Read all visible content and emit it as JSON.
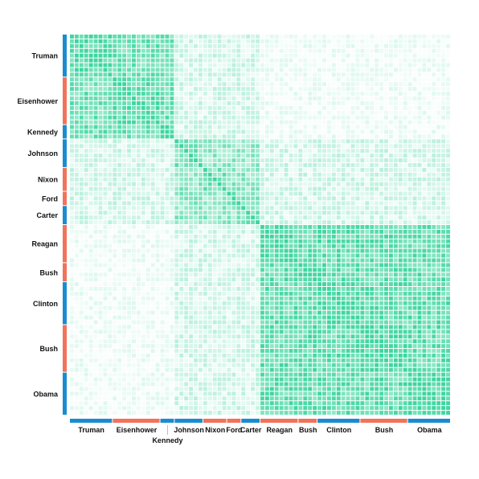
{
  "chart_data": {
    "type": "heatmap",
    "title": "",
    "presidents": [
      {
        "name": "Truman",
        "party": "D",
        "count": 9
      },
      {
        "name": "Eisenhower",
        "party": "R",
        "count": 10
      },
      {
        "name": "Kennedy",
        "party": "D",
        "count": 3
      },
      {
        "name": "Johnson",
        "party": "D",
        "count": 6
      },
      {
        "name": "Nixon",
        "party": "R",
        "count": 5
      },
      {
        "name": "Ford",
        "party": "R",
        "count": 3
      },
      {
        "name": "Carter",
        "party": "D",
        "count": 4
      },
      {
        "name": "Reagan",
        "party": "R",
        "count": 8
      },
      {
        "name": "Bush",
        "party": "R",
        "count": 4
      },
      {
        "name": "Clinton",
        "party": "D",
        "count": 9
      },
      {
        "name": "Bush",
        "party": "R",
        "count": 10
      },
      {
        "name": "Obama",
        "party": "D",
        "count": 9
      }
    ],
    "party_colors": {
      "D": "#1a8cd0",
      "R": "#f0735a"
    },
    "cell_color": "#3dd6a0",
    "value_range": [
      0,
      1
    ],
    "era_blocks": [
      {
        "from": "Truman",
        "to": "Kennedy",
        "strength": 0.72
      },
      {
        "from": "Johnson",
        "to": "Carter",
        "strength": 0.55
      },
      {
        "from": "Reagan",
        "to": "Obama",
        "strength": 0.78
      }
    ]
  }
}
